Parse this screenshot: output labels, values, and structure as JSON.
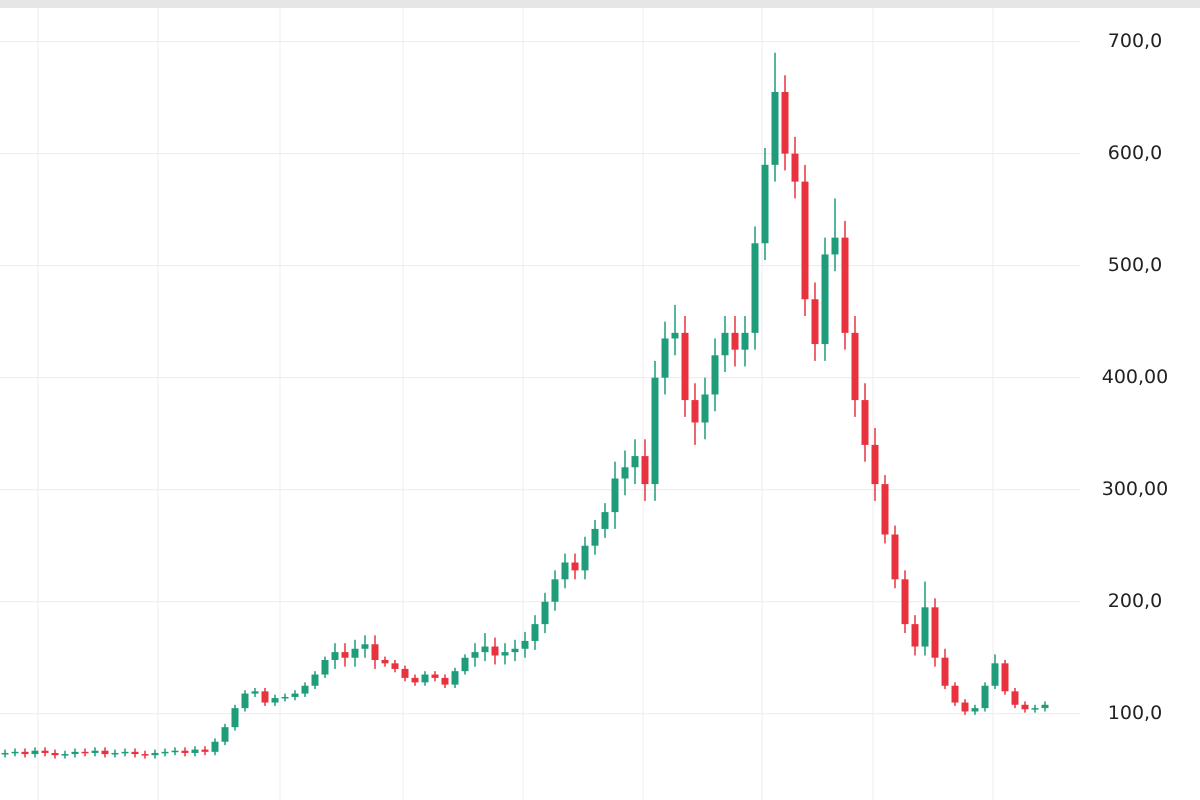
{
  "chart_data": {
    "type": "candlestick",
    "up_color": "#1f9c7a",
    "down_color": "#e8333f",
    "ylim": [
      23,
      730
    ],
    "yticks": [
      {
        "value": 100,
        "label": "100,0"
      },
      {
        "value": 200,
        "label": "200,0"
      },
      {
        "value": 300,
        "label": "300,00"
      },
      {
        "value": 400,
        "label": "400,00"
      },
      {
        "value": 500,
        "label": "500,0"
      },
      {
        "value": 600,
        "label": "600,0"
      },
      {
        "value": 700,
        "label": "700,0"
      }
    ],
    "grid": true,
    "open": [
      64,
      65,
      66,
      64,
      67,
      65,
      63,
      64,
      66,
      65,
      67,
      64,
      65,
      66,
      64,
      63,
      65,
      66,
      67,
      65,
      68,
      66,
      75,
      88,
      105,
      118,
      120,
      110,
      114,
      115,
      118,
      125,
      135,
      148,
      155,
      150,
      158,
      162,
      148,
      145,
      140,
      132,
      128,
      135,
      132,
      126,
      138,
      150,
      155,
      160,
      152,
      155,
      158,
      165,
      180,
      200,
      220,
      235,
      228,
      250,
      265,
      280,
      310,
      320,
      330,
      305,
      400,
      435,
      440,
      380,
      360,
      385,
      420,
      440,
      425,
      440,
      520,
      590,
      655,
      600,
      575,
      470,
      430,
      510,
      525,
      440,
      380,
      340,
      305,
      260,
      220,
      180,
      160,
      195,
      150,
      125,
      110,
      102,
      105,
      125,
      145,
      120,
      108,
      104,
      105
    ],
    "high": [
      68,
      69,
      69,
      70,
      70,
      68,
      67,
      69,
      69,
      70,
      70,
      68,
      69,
      69,
      67,
      68,
      69,
      70,
      70,
      71,
      71,
      78,
      91,
      108,
      121,
      123,
      123,
      117,
      118,
      121,
      128,
      138,
      151,
      163,
      163,
      166,
      170,
      170,
      151,
      148,
      143,
      135,
      138,
      138,
      135,
      141,
      153,
      163,
      172,
      168,
      163,
      166,
      173,
      188,
      208,
      228,
      243,
      243,
      258,
      273,
      288,
      325,
      335,
      345,
      345,
      415,
      450,
      465,
      455,
      395,
      400,
      435,
      455,
      455,
      455,
      535,
      605,
      690,
      670,
      615,
      590,
      485,
      525,
      560,
      540,
      455,
      395,
      355,
      313,
      268,
      228,
      188,
      218,
      203,
      158,
      128,
      113,
      108,
      128,
      153,
      148,
      123,
      111,
      108,
      111
    ],
    "low": [
      61,
      62,
      61,
      61,
      62,
      60,
      60,
      61,
      62,
      62,
      61,
      61,
      62,
      61,
      60,
      60,
      62,
      63,
      62,
      62,
      63,
      63,
      72,
      85,
      102,
      115,
      107,
      107,
      111,
      112,
      115,
      122,
      132,
      140,
      142,
      142,
      150,
      140,
      142,
      137,
      129,
      125,
      125,
      129,
      123,
      123,
      135,
      142,
      147,
      144,
      144,
      147,
      150,
      157,
      172,
      192,
      212,
      220,
      220,
      242,
      257,
      265,
      295,
      305,
      290,
      290,
      385,
      420,
      365,
      340,
      345,
      370,
      405,
      410,
      410,
      425,
      505,
      575,
      585,
      560,
      455,
      415,
      415,
      495,
      425,
      365,
      325,
      290,
      252,
      212,
      172,
      152,
      152,
      142,
      122,
      107,
      99,
      99,
      102,
      122,
      117,
      105,
      101,
      101,
      102
    ],
    "close": [
      65,
      66,
      64,
      67,
      65,
      63,
      64,
      66,
      65,
      67,
      64,
      65,
      66,
      64,
      63,
      65,
      66,
      67,
      65,
      68,
      66,
      75,
      88,
      105,
      118,
      120,
      110,
      114,
      115,
      118,
      125,
      135,
      148,
      155,
      150,
      158,
      162,
      148,
      145,
      140,
      132,
      128,
      135,
      132,
      126,
      138,
      150,
      155,
      160,
      152,
      155,
      158,
      165,
      180,
      200,
      220,
      235,
      228,
      250,
      265,
      280,
      310,
      320,
      330,
      305,
      400,
      435,
      440,
      380,
      360,
      385,
      420,
      440,
      425,
      440,
      520,
      590,
      655,
      600,
      575,
      470,
      430,
      510,
      525,
      440,
      380,
      340,
      305,
      260,
      220,
      180,
      160,
      195,
      150,
      125,
      110,
      102,
      105,
      125,
      145,
      120,
      108,
      104,
      105,
      108
    ]
  }
}
